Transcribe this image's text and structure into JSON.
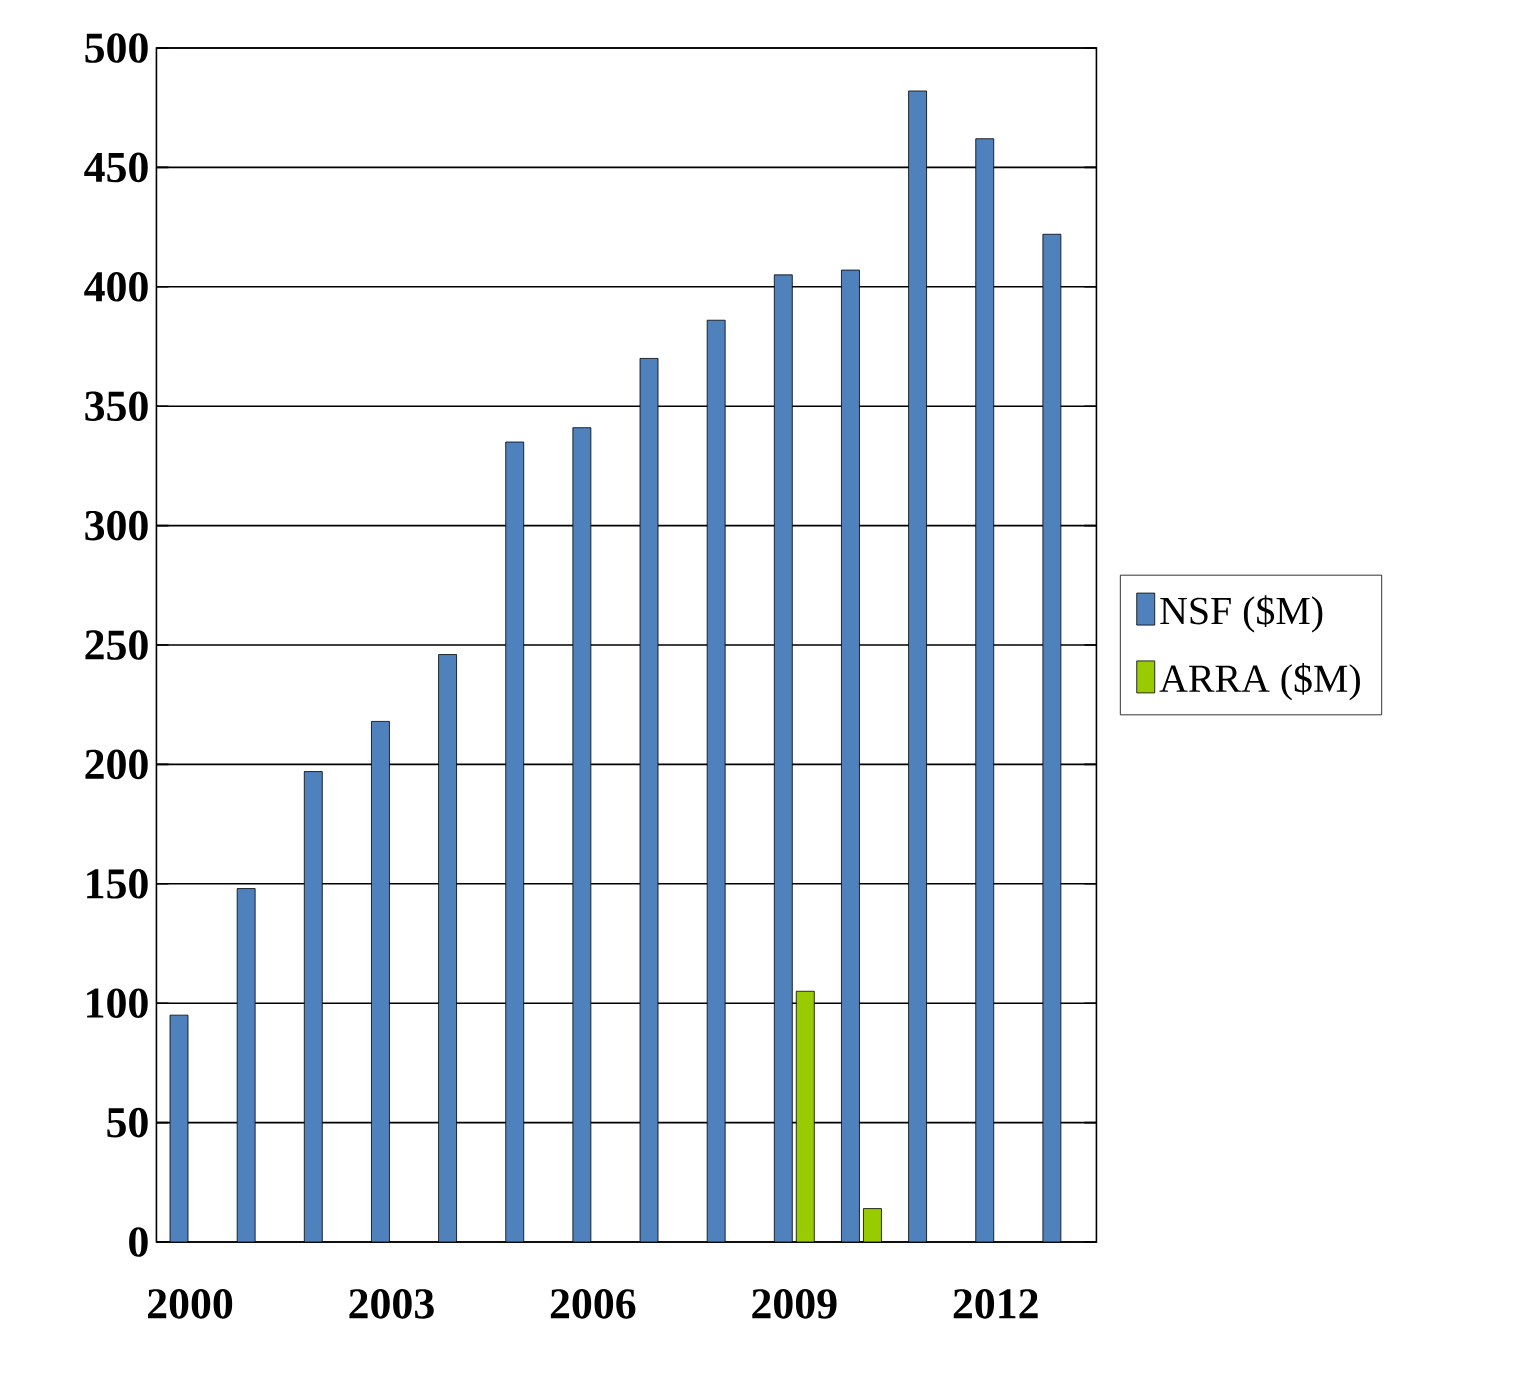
{
  "chart_data": {
    "type": "bar",
    "categories": [
      "2000",
      null,
      null,
      "2003",
      null,
      null,
      "2006",
      null,
      null,
      "2009",
      null,
      null,
      "2012",
      null
    ],
    "series": [
      {
        "name": "NSF ($M)",
        "color": "#4f81bd",
        "values": [
          95,
          148,
          197,
          218,
          246,
          335,
          341,
          370,
          386,
          405,
          407,
          482,
          462,
          422
        ]
      },
      {
        "name": "ARRA ($M)",
        "color": "#99cc00",
        "values": [
          null,
          null,
          null,
          null,
          null,
          null,
          null,
          null,
          null,
          105,
          14,
          null,
          null,
          null
        ]
      }
    ],
    "ylim": [
      0,
      500
    ],
    "yticks": [
      0,
      50,
      100,
      150,
      200,
      250,
      300,
      350,
      400,
      450,
      500
    ],
    "grid": "y",
    "legend": "right"
  }
}
